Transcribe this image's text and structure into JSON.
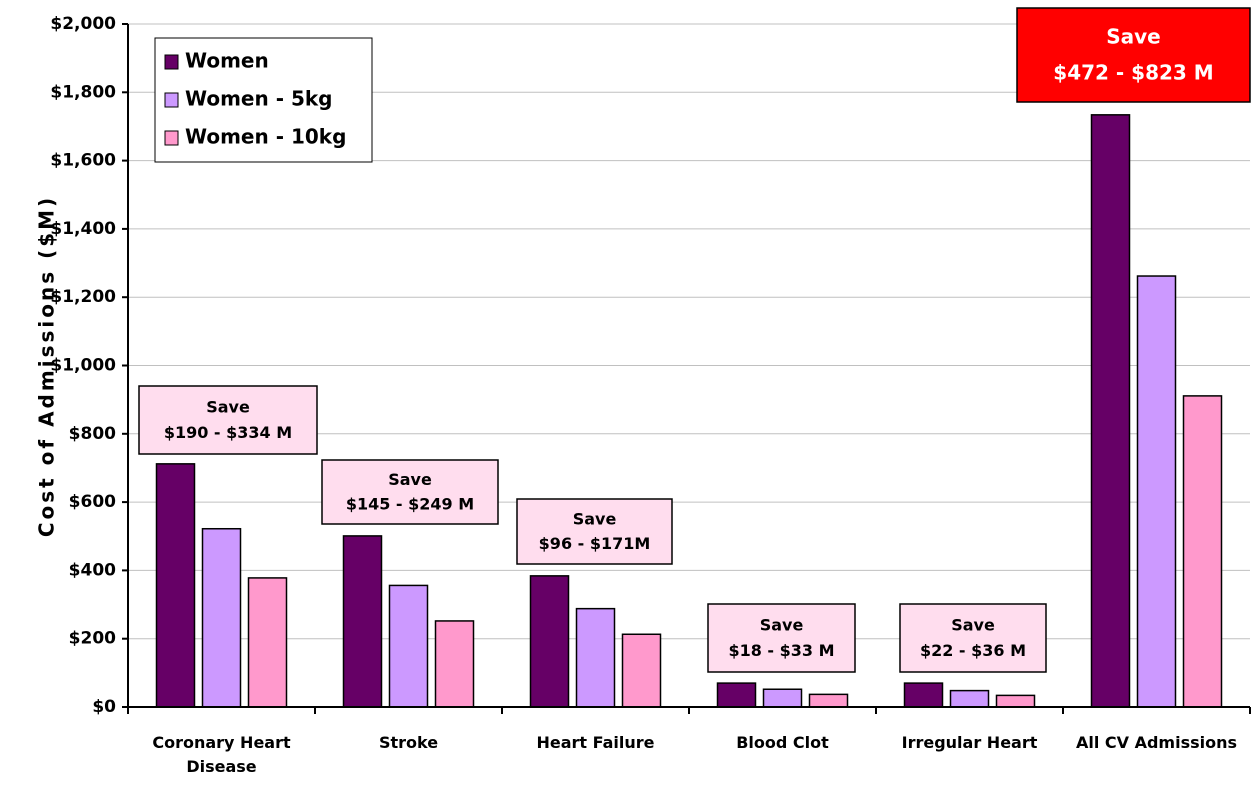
{
  "chart_data": {
    "type": "bar",
    "y_label": "Cost of Admissions ($M)",
    "categories": [
      "Coronary Heart Disease",
      "Stroke",
      "Heart Failure",
      "Blood Clot",
      "Irregular Heart",
      "All CV Admissions"
    ],
    "series": [
      {
        "name": "Women",
        "color": "#660066",
        "values": [
          712,
          501,
          384,
          70,
          70,
          1734
        ]
      },
      {
        "name": "Women - 5kg",
        "color": "#cc99ff",
        "values": [
          522,
          356,
          288,
          52,
          48,
          1262
        ]
      },
      {
        "name": "Women - 10kg",
        "color": "#ff99cc",
        "values": [
          378,
          252,
          213,
          37,
          34,
          911
        ]
      }
    ],
    "ylim": [
      0,
      2000
    ],
    "yticks": [
      {
        "value": 0,
        "label": "$0"
      },
      {
        "value": 200,
        "label": "$200"
      },
      {
        "value": 400,
        "label": "$400"
      },
      {
        "value": 600,
        "label": "$600"
      },
      {
        "value": 800,
        "label": "$800"
      },
      {
        "value": 1000,
        "label": "$1,000"
      },
      {
        "value": 1200,
        "label": "$1,200"
      },
      {
        "value": 1400,
        "label": "$1,400"
      },
      {
        "value": 1600,
        "label": "$1,600"
      },
      {
        "value": 1800,
        "label": "$1,800"
      },
      {
        "value": 2000,
        "label": "$2,000"
      }
    ],
    "grid": true,
    "legend": "upper left",
    "annotations": [
      {
        "lines": [
          "Save",
          "$190 - $334 M"
        ],
        "color": "#ffddee",
        "text_color": "#000000"
      },
      {
        "lines": [
          "Save",
          "$145 - $249 M"
        ],
        "color": "#ffddee",
        "text_color": "#000000"
      },
      {
        "lines": [
          "Save",
          "$96 - $171M"
        ],
        "color": "#ffddee",
        "text_color": "#000000"
      },
      {
        "lines": [
          "Save",
          "$18 - $33 M"
        ],
        "color": "#ffddee",
        "text_color": "#000000"
      },
      {
        "lines": [
          "Save",
          "$22 - $36 M"
        ],
        "color": "#ffddee",
        "text_color": "#000000"
      },
      {
        "lines": [
          "Save",
          "$472 - $823 M"
        ],
        "color": "#ff0000",
        "text_color": "#ffffff"
      }
    ]
  }
}
